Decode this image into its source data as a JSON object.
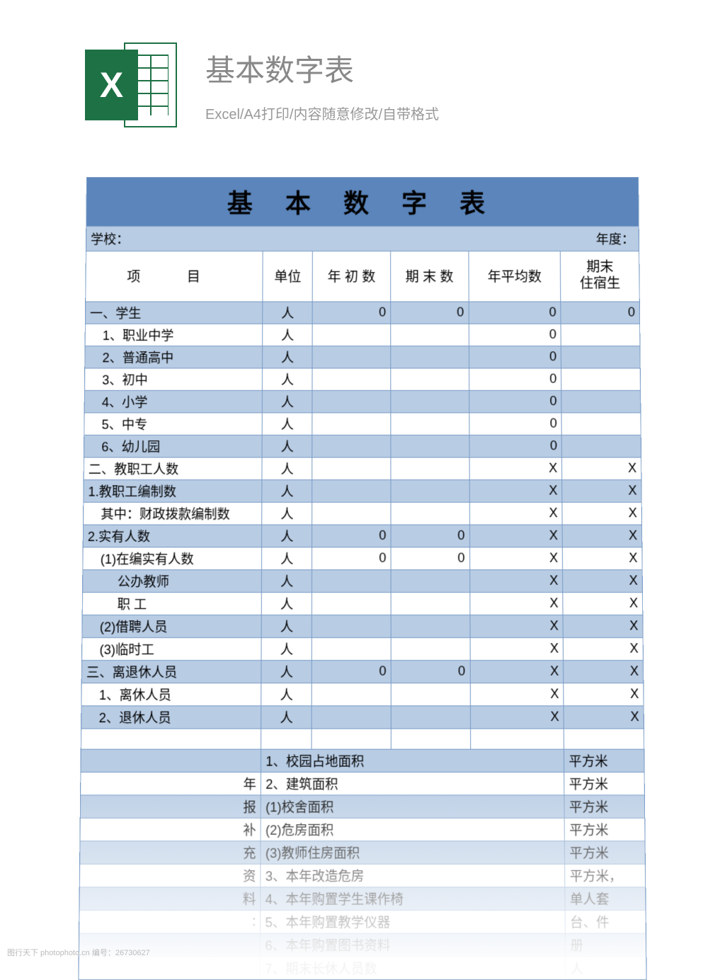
{
  "header": {
    "title": "基本数字表",
    "subtitle": "Excel/A4打印/内容随意修改/自带格式",
    "icon_letter": "X"
  },
  "sheet": {
    "title": "基 本 数 字 表",
    "meta_left": "学校：",
    "meta_right": "年度：",
    "columns": {
      "item": "项    目",
      "unit": "单位",
      "v1": "年 初 数",
      "v2": "期 末 数",
      "v3": "年平均数",
      "v4": "期末\n住宿生"
    },
    "rows": [
      {
        "item": "一、学生",
        "indent": 0,
        "unit": "人",
        "v1": "0",
        "v2": "0",
        "v3": "0",
        "v4": "0",
        "alt": true
      },
      {
        "item": "1、职业中学",
        "indent": 1,
        "unit": "人",
        "v1": "",
        "v2": "",
        "v3": "0",
        "v4": "",
        "alt": false
      },
      {
        "item": "2、普通高中",
        "indent": 1,
        "unit": "人",
        "v1": "",
        "v2": "",
        "v3": "0",
        "v4": "",
        "alt": true
      },
      {
        "item": "3、初中",
        "indent": 1,
        "unit": "人",
        "v1": "",
        "v2": "",
        "v3": "0",
        "v4": "",
        "alt": false
      },
      {
        "item": "4、小学",
        "indent": 1,
        "unit": "人",
        "v1": "",
        "v2": "",
        "v3": "0",
        "v4": "",
        "alt": true
      },
      {
        "item": "5、中专",
        "indent": 1,
        "unit": "人",
        "v1": "",
        "v2": "",
        "v3": "0",
        "v4": "",
        "alt": false
      },
      {
        "item": "6、幼儿园",
        "indent": 1,
        "unit": "人",
        "v1": "",
        "v2": "",
        "v3": "0",
        "v4": "",
        "alt": true
      },
      {
        "item": "二、教职工人数",
        "indent": 0,
        "unit": "人",
        "v1": "",
        "v2": "",
        "v3": "X",
        "v4": "X",
        "alt": false
      },
      {
        "item": "1.教职工编制数",
        "indent": 0,
        "unit": "人",
        "v1": "",
        "v2": "",
        "v3": "X",
        "v4": "X",
        "alt": true
      },
      {
        "item": "其中：财政拨款编制数",
        "indent": 1,
        "unit": "人",
        "v1": "",
        "v2": "",
        "v3": "X",
        "v4": "X",
        "alt": false
      },
      {
        "item": "2.实有人数",
        "indent": 0,
        "unit": "人",
        "v1": "0",
        "v2": "0",
        "v3": "X",
        "v4": "X",
        "alt": true
      },
      {
        "item": "(1)在编实有人数",
        "indent": 1,
        "unit": "人",
        "v1": "0",
        "v2": "0",
        "v3": "X",
        "v4": "X",
        "alt": false
      },
      {
        "item": "公办教师",
        "indent": 2,
        "unit": "人",
        "v1": "",
        "v2": "",
        "v3": "X",
        "v4": "X",
        "alt": true
      },
      {
        "item": "职    工",
        "indent": 2,
        "unit": "人",
        "v1": "",
        "v2": "",
        "v3": "X",
        "v4": "X",
        "alt": false
      },
      {
        "item": "(2)借聘人员",
        "indent": 1,
        "unit": "人",
        "v1": "",
        "v2": "",
        "v3": "X",
        "v4": "X",
        "alt": true
      },
      {
        "item": "(3)临时工",
        "indent": 1,
        "unit": "人",
        "v1": "",
        "v2": "",
        "v3": "X",
        "v4": "X",
        "alt": false
      },
      {
        "item": "三、离退休人员",
        "indent": 0,
        "unit": "人",
        "v1": "0",
        "v2": "0",
        "v3": "X",
        "v4": "X",
        "alt": true
      },
      {
        "item": "1、离休人员",
        "indent": 1,
        "unit": "人",
        "v1": "",
        "v2": "",
        "v3": "X",
        "v4": "X",
        "alt": false
      },
      {
        "item": "2、退休人员",
        "indent": 1,
        "unit": "人",
        "v1": "",
        "v2": "",
        "v3": "X",
        "v4": "X",
        "alt": true
      }
    ],
    "blank": {
      "alt": false
    },
    "bottom_label_chars": [
      "",
      "年",
      "报",
      "补",
      "充",
      "资",
      "料",
      ":",
      "",
      ""
    ],
    "bottom_rows": [
      {
        "left": "",
        "mid": "1、校园占地面积",
        "right": "平方米",
        "alt": true
      },
      {
        "left": "年",
        "mid": "2、建筑面积",
        "right": "平方米",
        "alt": false
      },
      {
        "left": "报",
        "mid": "(1)校舍面积",
        "right": "平方米",
        "alt": true
      },
      {
        "left": "补",
        "mid": "(2)危房面积",
        "right": "平方米",
        "alt": false
      },
      {
        "left": "充",
        "mid": "(3)教师住房面积",
        "right": "平方米",
        "alt": true
      },
      {
        "left": "资",
        "mid": "3、本年改造危房",
        "right": "平方米，",
        "alt": false
      },
      {
        "left": "料",
        "mid": "4、本年购置学生课作椅",
        "right": "单人套",
        "alt": true
      },
      {
        "left": ":",
        "mid": "5、本年购置教学仪器",
        "right": "台、件",
        "alt": false
      },
      {
        "left": "",
        "mid": "6、本年购置图书资料",
        "right": "册",
        "alt": true
      },
      {
        "left": "",
        "mid": "7、期末长休人员数",
        "right": "人",
        "alt": false
      }
    ]
  },
  "watermark": "图行天下 photophoto.cn  编号：26730627"
}
